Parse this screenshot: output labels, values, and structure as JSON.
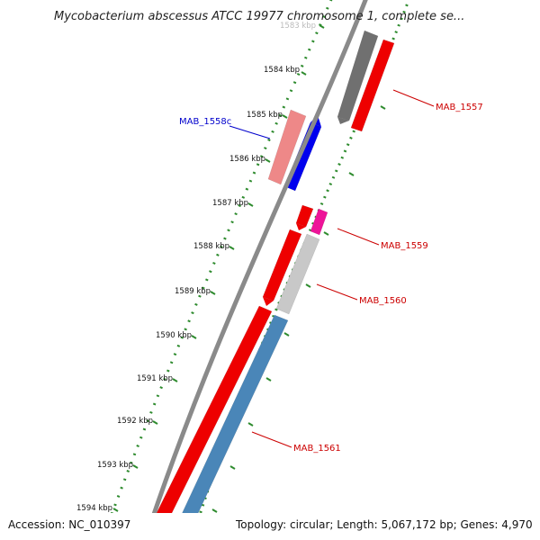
{
  "title": "Mycobacterium abscessus ATCC 19977 chromosome 1, complete se...",
  "footer": {
    "accession": "Accession: NC_010397",
    "summary": "Topology: circular; Length: 5,067,172 bp; Genes: 4,970"
  },
  "colors": {
    "backbone": "#8a8a8a",
    "ticks": "#2e8b2e",
    "label_red": "#cc0000",
    "label_blue": "#0000cc"
  },
  "ticks": [
    {
      "label": "1583 kbp",
      "faded": true
    },
    {
      "label": "1584 kbp"
    },
    {
      "label": "1585 kbp"
    },
    {
      "label": "1586 kbp"
    },
    {
      "label": "1587 kbp"
    },
    {
      "label": "1588 kbp"
    },
    {
      "label": "1589 kbp"
    },
    {
      "label": "1590 kbp"
    },
    {
      "label": "1591 kbp"
    },
    {
      "label": "1592 kbp"
    },
    {
      "label": "1593 kbp"
    },
    {
      "label": "1594 kbp"
    }
  ],
  "gene_labels": [
    {
      "text": "MAB_1557",
      "color": "#cc0000"
    },
    {
      "text": "MAB_1558c",
      "color": "#0000cc"
    },
    {
      "text": "MAB_1559",
      "color": "#cc0000"
    },
    {
      "text": "MAB_1560",
      "color": "#cc0000"
    },
    {
      "text": "MAB_1561",
      "color": "#cc0000"
    }
  ],
  "features": [
    {
      "name": "mab-1557-cds",
      "color": "#ee0000",
      "strand": "reverse"
    },
    {
      "name": "mab-1557-gene",
      "color": "#707070",
      "strand": "reverse"
    },
    {
      "name": "mab-1558c-cds",
      "color": "#0000ee",
      "strand": "forward"
    },
    {
      "name": "mab-1558c-gene",
      "color": "#ee8888",
      "strand": "forward"
    },
    {
      "name": "mab-1559-cds",
      "color": "#ee0000",
      "strand": "reverse"
    },
    {
      "name": "mab-1559-gene",
      "color": "#ee1499",
      "strand": "reverse"
    },
    {
      "name": "mab-1560-cds",
      "color": "#ee0000",
      "strand": "reverse"
    },
    {
      "name": "mab-1560-gene",
      "color": "#c8c8c8",
      "strand": "reverse"
    },
    {
      "name": "mab-1561-cds",
      "color": "#ee0000",
      "strand": "reverse"
    },
    {
      "name": "mab-1561-gene",
      "color": "#4a86b8",
      "strand": "reverse"
    }
  ]
}
